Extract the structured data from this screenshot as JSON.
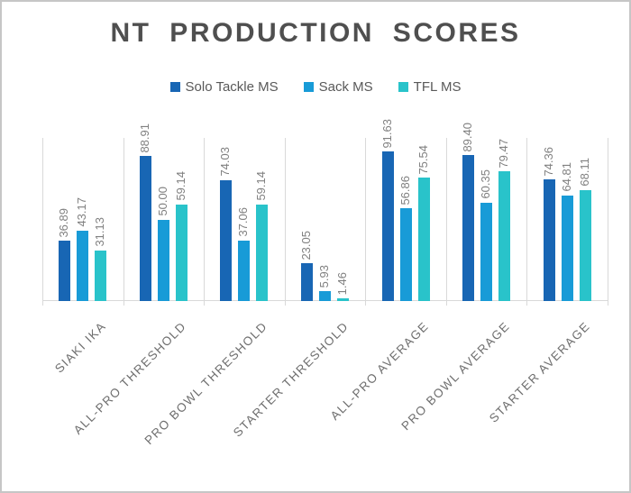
{
  "window": {
    "background": "#ffffff",
    "border_color": "#c6c6c6"
  },
  "colors": {
    "title_text": "#4f4f4f",
    "legend_text": "#595959",
    "data_label_text": "#808080",
    "category_label_text": "#6e6e6e",
    "gridline": "#d9d9d9"
  },
  "chart_data": {
    "type": "bar",
    "title": "NT PRODUCTION SCORES",
    "categories": [
      "SIAKI IKA",
      "ALL-PRO THRESHOLD",
      "PRO BOWL THRESHOLD",
      "STARTER THRESHOLD",
      "ALL-PRO AVERAGE",
      "PRO BOWL AVERAGE",
      "STARTER AVERAGE"
    ],
    "series": [
      {
        "name": "Solo Tackle MS",
        "color": "#1866b4",
        "values": [
          36.89,
          88.91,
          74.03,
          23.05,
          91.63,
          89.4,
          74.36
        ],
        "labels": [
          "36.89",
          "88.91",
          "74.03",
          "23.05",
          "91.63",
          "89.40",
          "74.36"
        ]
      },
      {
        "name": "Sack MS",
        "color": "#189bd7",
        "values": [
          43.17,
          50.0,
          37.06,
          5.93,
          56.86,
          60.35,
          64.81
        ],
        "labels": [
          "43.17",
          "50.00",
          "37.06",
          "5.93",
          "56.86",
          "60.35",
          "64.81"
        ]
      },
      {
        "name": "TFL MS",
        "color": "#29c3ca",
        "values": [
          31.13,
          59.14,
          59.14,
          1.46,
          75.54,
          79.47,
          68.11
        ],
        "labels": [
          "31.13",
          "59.14",
          "59.14",
          "1.46",
          "75.54",
          "79.47",
          "68.11"
        ]
      }
    ],
    "ylim": [
      0,
      100
    ],
    "xlabel": "",
    "ylabel": "",
    "legend_position": "top",
    "grid": "vertical category separators, no y-axis labels",
    "data_labels": {
      "visible": true,
      "rotation": 90,
      "format": "0.00"
    },
    "category_label_rotation": 45
  }
}
